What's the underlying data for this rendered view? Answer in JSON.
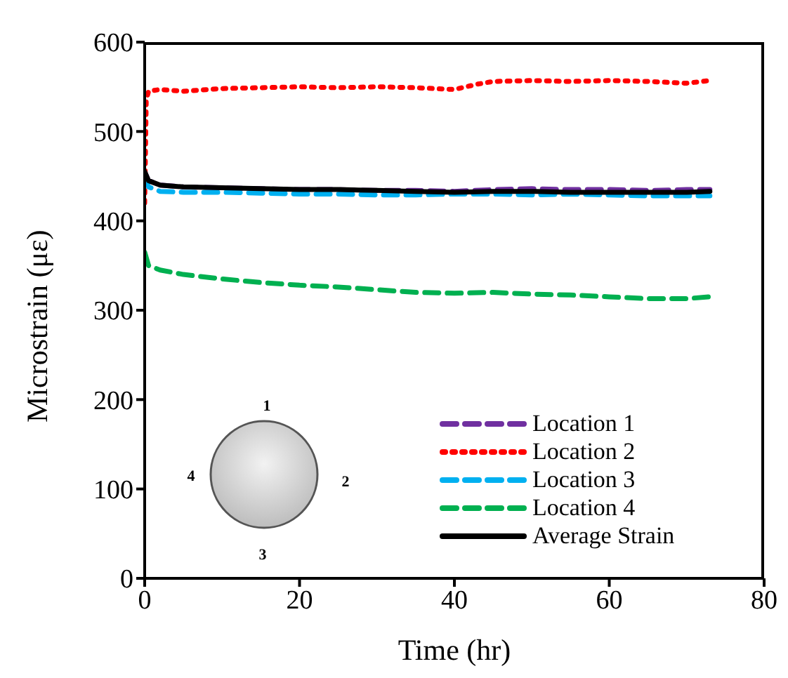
{
  "chart_data": {
    "type": "line",
    "xlabel": "Time (hr)",
    "ylabel": "Microstrain (με)",
    "xlim": [
      0,
      80
    ],
    "xticks": [
      0,
      20,
      40,
      60,
      80
    ],
    "ylim": [
      0,
      600
    ],
    "yticks": [
      0,
      100,
      200,
      300,
      400,
      500,
      600
    ],
    "grid": false,
    "legend": "bottom right",
    "annotations": [
      "1",
      "2",
      "3",
      "4"
    ],
    "series": [
      {
        "name": "Location 1",
        "color": "#7030a0",
        "line_style": "dashed",
        "x": [
          0,
          0.5,
          2,
          5,
          10,
          15,
          20,
          25,
          30,
          35,
          40,
          45,
          50,
          55,
          60,
          65,
          70,
          73
        ],
        "values": [
          455,
          445,
          440,
          438,
          437,
          436,
          435,
          435,
          434,
          434,
          433,
          435,
          436,
          435,
          435,
          434,
          435,
          435
        ]
      },
      {
        "name": "Location 2",
        "color": "#ff0000",
        "line_style": "dotted",
        "x": [
          0,
          0.2,
          0.5,
          2,
          5,
          10,
          15,
          20,
          25,
          30,
          35,
          40,
          43,
          45,
          50,
          55,
          60,
          65,
          70,
          73
        ],
        "values": [
          420,
          535,
          545,
          547,
          545,
          548,
          549,
          550,
          549,
          550,
          549,
          547,
          553,
          556,
          557,
          556,
          557,
          556,
          554,
          557
        ]
      },
      {
        "name": "Location 3",
        "color": "#00b0f0",
        "line_style": "dashed",
        "x": [
          0,
          0.5,
          2,
          5,
          10,
          15,
          20,
          25,
          30,
          35,
          40,
          45,
          50,
          55,
          60,
          65,
          70,
          73
        ],
        "values": [
          450,
          438,
          433,
          432,
          432,
          431,
          430,
          430,
          429,
          429,
          430,
          430,
          429,
          430,
          429,
          428,
          428,
          428
        ]
      },
      {
        "name": "Location 4",
        "color": "#00b050",
        "line_style": "dashed",
        "x": [
          0,
          0.5,
          2,
          5,
          10,
          15,
          20,
          25,
          30,
          35,
          40,
          45,
          50,
          55,
          60,
          65,
          70,
          73
        ],
        "values": [
          365,
          350,
          345,
          340,
          335,
          331,
          328,
          326,
          323,
          320,
          319,
          320,
          318,
          317,
          315,
          313,
          313,
          315
        ]
      },
      {
        "name": "Average Strain",
        "color": "#000000",
        "line_style": "solid",
        "x": [
          0,
          0.5,
          2,
          5,
          10,
          15,
          20,
          25,
          30,
          35,
          40,
          45,
          50,
          55,
          60,
          65,
          70,
          73
        ],
        "values": [
          455,
          445,
          440,
          438,
          437,
          436,
          435,
          435,
          434,
          433,
          432,
          433,
          433,
          432,
          432,
          432,
          432,
          433
        ]
      }
    ]
  }
}
